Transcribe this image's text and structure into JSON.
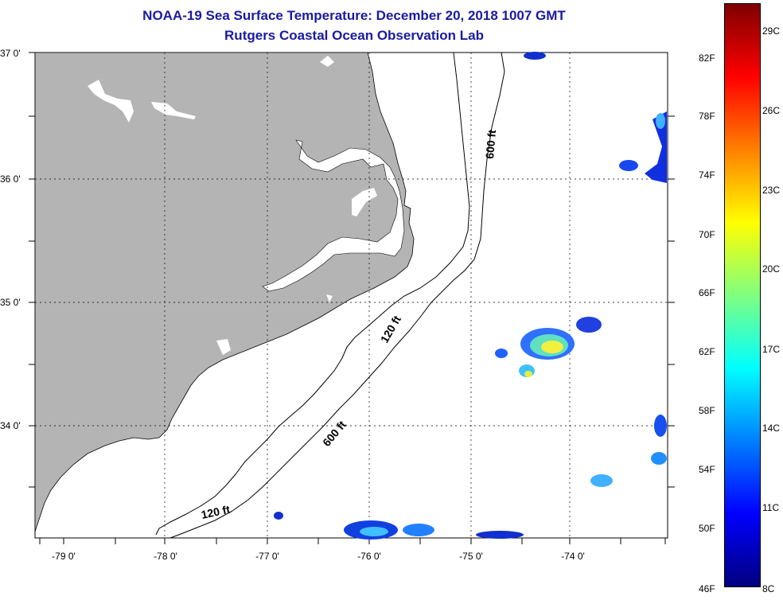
{
  "title": {
    "line1": "NOAA-19 Sea Surface Temperature:  December 20, 2018 1007 GMT",
    "line2": "Rutgers Coastal Ocean Observation Lab"
  },
  "map": {
    "lat_labels": [
      "37 0'",
      "36 0'",
      "35 0'",
      "34 0'"
    ],
    "lon_labels": [
      "-79 0'",
      "-78 0'",
      "-77 0'",
      "-76 0'",
      "-75 0'",
      "-74 0'"
    ],
    "contour_labels": [
      "600 ft",
      "120 ft",
      "600 ft",
      "120 ft"
    ],
    "land_color": "#b4b4b4",
    "water_color": "#ffffff"
  },
  "colorbar": {
    "fahrenheit": [
      "82F",
      "78F",
      "74F",
      "70F",
      "66F",
      "62F",
      "58F",
      "54F",
      "50F",
      "46F"
    ],
    "celsius": [
      "29C",
      "26C",
      "23C",
      "20C",
      "17C",
      "14C",
      "11C",
      "8C"
    ],
    "gradient_colors": [
      "#00007f",
      "#0000ff",
      "#0080ff",
      "#00ffff",
      "#80ff80",
      "#ffff00",
      "#ff8000",
      "#ff0000",
      "#7f0000"
    ]
  }
}
